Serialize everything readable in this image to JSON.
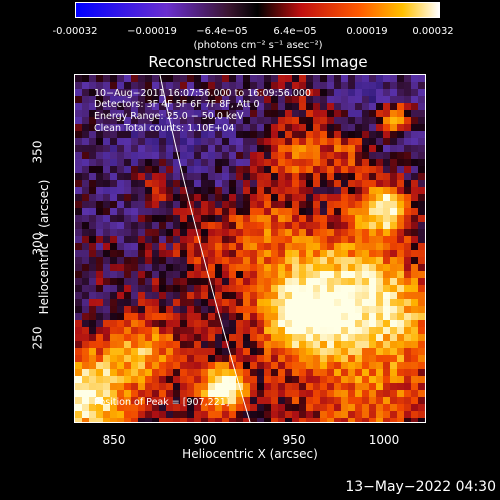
{
  "colorbar": {
    "ticks": [
      "-0.00032",
      "−0.00019",
      "−6.4e−05",
      "6.4e−05",
      "0.00019",
      "0.00032"
    ],
    "units": "(photons cm⁻² s⁻¹ asec⁻²)"
  },
  "chart_data": {
    "type": "heatmap",
    "title": "Reconstructed RHESSI Image",
    "xlabel": "Heliocentric X (arcsec)",
    "ylabel": "Heliocentric Y (arcsec)",
    "x_ticks": [
      "850",
      "900",
      "950",
      "1000"
    ],
    "y_ticks": [
      "250",
      "300",
      "350"
    ],
    "xlim": [
      830,
      1023
    ],
    "ylim": [
      200,
      390
    ],
    "color_range": [
      -0.00032,
      0.00032
    ],
    "annotations": [
      "10−Aug−2011 16:07:56.000 to 16:09:56.000",
      "Detectors: 3F 4F 5F 6F 7F 8F, Att 0",
      "Energy Range: 25.0 − 50.0 keV",
      "Clean    Total counts: 1.10E+04",
      "Position of Peak = [907,221]"
    ],
    "peak": [
      907,
      221
    ]
  },
  "footer": {
    "timestamp": "13−May−2022 04:30"
  }
}
